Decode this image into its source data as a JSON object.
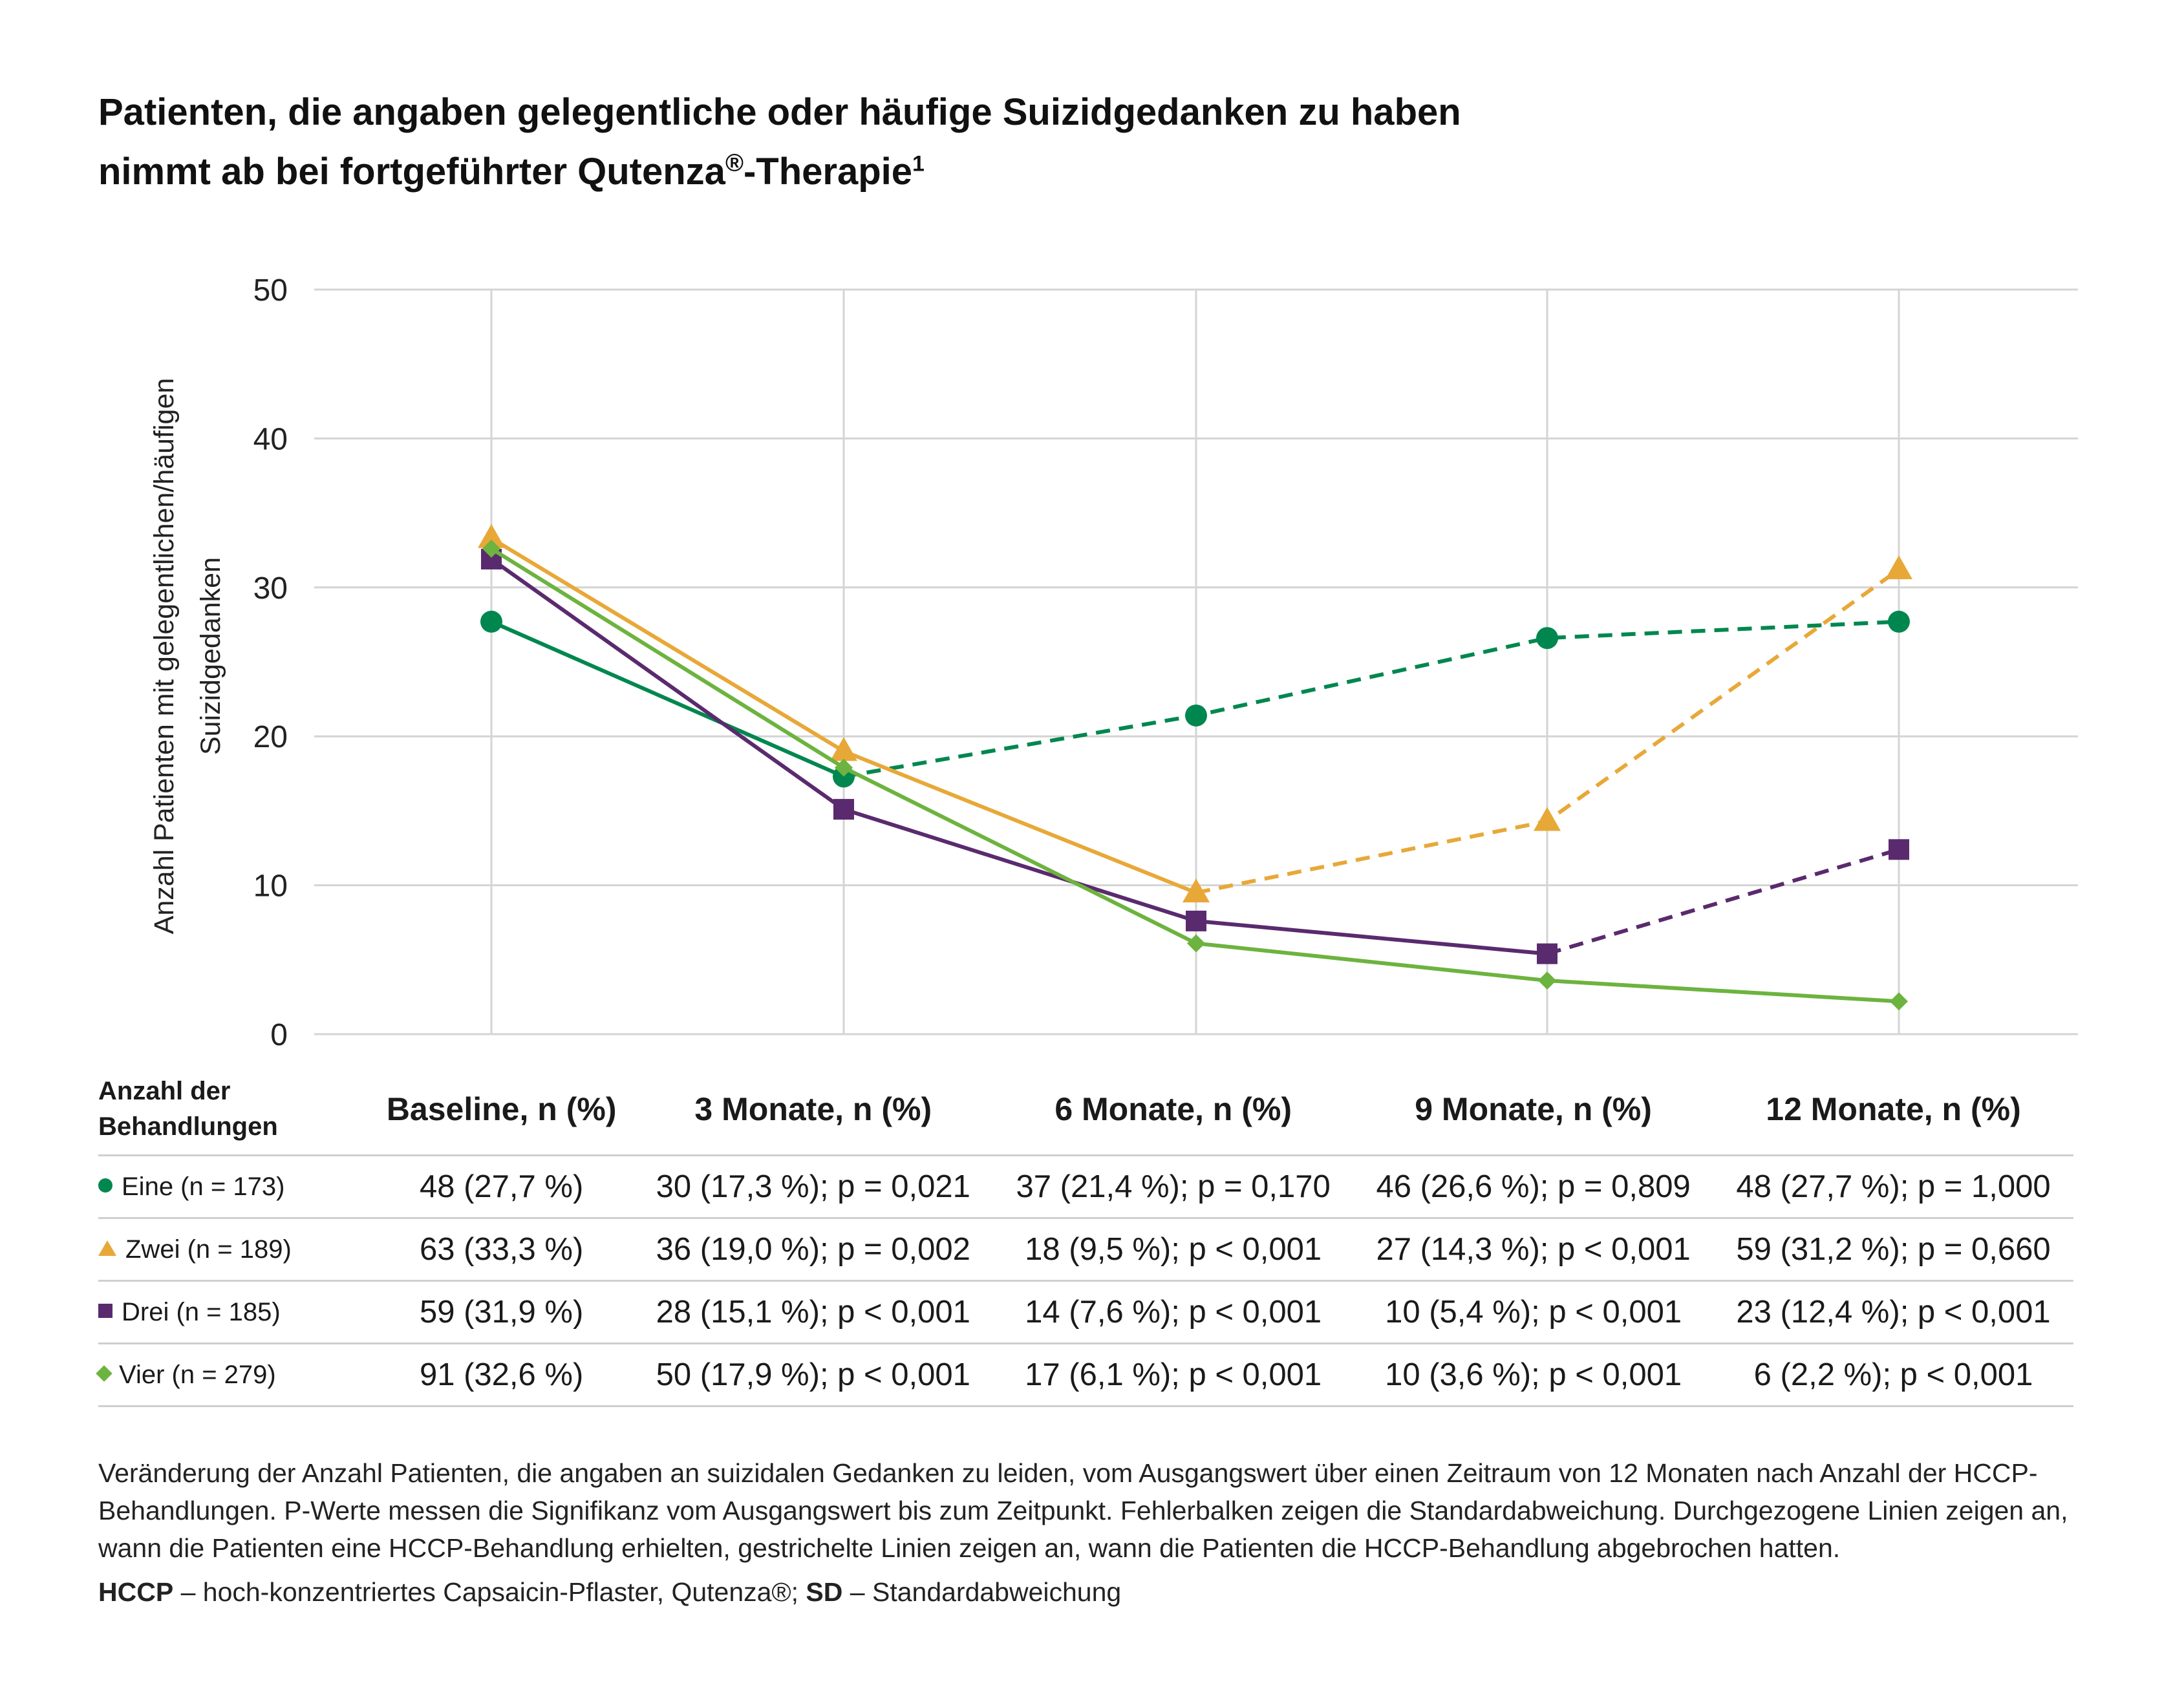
{
  "title": {
    "line1": "Patienten, die angaben gelegentliche oder häufige Suizidgedanken zu haben",
    "line2_pre": "nimmt ab bei fortgeführter Qutenza",
    "line2_reg": "®",
    "line2_post": "-Therapie",
    "line2_sup": "1"
  },
  "chart_data": {
    "type": "line",
    "categories": [
      "Baseline",
      "3 Monate",
      "6 Monate",
      "9 Monate",
      "12 Monate"
    ],
    "ylabel": "Anzahl Patienten mit gelegentlichen/häufigen Suizidgedanken",
    "ylim": [
      0,
      50
    ],
    "yticks": [
      0,
      10,
      20,
      30,
      40,
      50
    ],
    "grid": true,
    "series": [
      {
        "name": "Eine",
        "color": "#00874f",
        "marker": "circle",
        "values": [
          27.7,
          17.3,
          21.4,
          26.6,
          27.7
        ],
        "solid_until_index": 1
      },
      {
        "name": "Zwei",
        "color": "#e8a838",
        "marker": "triangle",
        "values": [
          33.3,
          19.0,
          9.5,
          14.3,
          31.2
        ],
        "solid_until_index": 2
      },
      {
        "name": "Drei",
        "color": "#5a2a6e",
        "marker": "square",
        "values": [
          31.9,
          15.1,
          7.6,
          5.4,
          12.4
        ],
        "solid_until_index": 3
      },
      {
        "name": "Vier",
        "color": "#6db33f",
        "marker": "diamond",
        "values": [
          32.6,
          17.9,
          6.1,
          3.6,
          2.2
        ],
        "solid_until_index": 4
      }
    ]
  },
  "table": {
    "corner_line1": "Anzahl der",
    "corner_line2": "Behandlungen",
    "headers": [
      "Baseline, n (%)",
      "3 Monate, n (%)",
      "6 Monate, n (%)",
      "9 Monate, n (%)",
      "12 Monate, n (%)"
    ],
    "rows": [
      {
        "label": "Eine (n = 173)",
        "color": "#00874f",
        "marker": "circle",
        "cells": [
          "48 (27,7 %)",
          "30 (17,3 %); p = 0,021",
          "37 (21,4 %); p = 0,170",
          "46 (26,6 %); p = 0,809",
          "48 (27,7 %); p = 1,000"
        ]
      },
      {
        "label": "Zwei (n = 189)",
        "color": "#e8a838",
        "marker": "triangle",
        "cells": [
          "63 (33,3 %)",
          "36 (19,0 %); p = 0,002",
          "18 (9,5 %); p < 0,001",
          "27 (14,3 %); p < 0,001",
          "59 (31,2 %); p = 0,660"
        ]
      },
      {
        "label": "Drei (n = 185)",
        "color": "#5a2a6e",
        "marker": "square",
        "cells": [
          "59 (31,9 %)",
          "28 (15,1 %); p < 0,001",
          "14 (7,6 %); p < 0,001",
          "10 (5,4 %); p < 0,001",
          "23 (12,4 %); p < 0,001"
        ]
      },
      {
        "label": "Vier (n = 279)",
        "color": "#6db33f",
        "marker": "diamond",
        "cells": [
          "91 (32,6 %)",
          "50 (17,9 %); p < 0,001",
          "17 (6,1 %); p < 0,001",
          "10 (3,6 %); p < 0,001",
          "6 (2,2 %); p < 0,001"
        ]
      }
    ]
  },
  "footnote": {
    "text": "Veränderung der Anzahl Patienten, die angaben an suizidalen Gedanken zu leiden, vom Ausgangswert über einen Zeitraum von 12 Monaten nach Anzahl der HCCP-Behandlungen. P-Werte messen die Signifikanz vom Ausgangswert bis zum Zeitpunkt. Fehlerbalken zeigen die Standardabweichung. Durchgezogene Linien zeigen an, wann die Patienten eine HCCP-Behandlung erhielten, gestrichelte Linien zeigen an, wann die Patienten die HCCP-Behandlung abgebrochen hatten.",
    "abbr1_term": "HCCP",
    "abbr1_def": " – hoch-konzentriertes Capsaicin-Pflaster, Qutenza®; ",
    "abbr2_term": "SD",
    "abbr2_def": " – Standardabweichung"
  }
}
